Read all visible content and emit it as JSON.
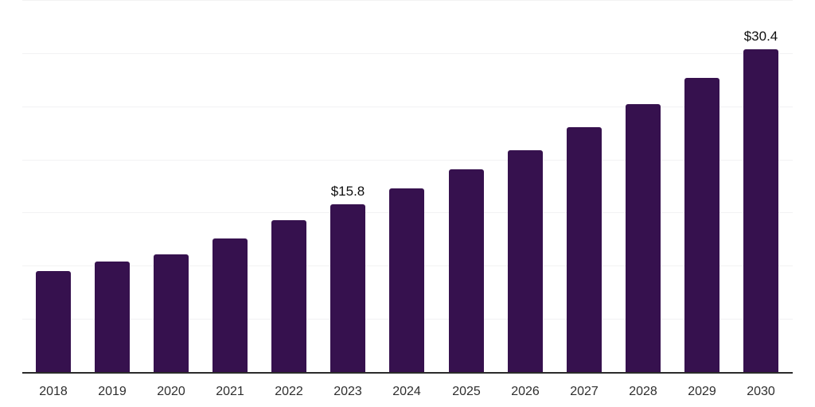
{
  "chart_data": {
    "type": "bar",
    "title": "",
    "xlabel": "",
    "ylabel": "",
    "categories": [
      "2018",
      "2019",
      "2020",
      "2021",
      "2022",
      "2023",
      "2024",
      "2025",
      "2026",
      "2027",
      "2028",
      "2029",
      "2030"
    ],
    "values": [
      9.5,
      10.4,
      11.1,
      12.6,
      14.3,
      15.8,
      17.3,
      19.1,
      20.9,
      23.0,
      25.2,
      27.7,
      30.4
    ],
    "data_labels": [
      {
        "index": 5,
        "text": "$15.8"
      },
      {
        "index": 12,
        "text": "$30.4"
      }
    ],
    "ylim": [
      0,
      35
    ],
    "grid_step": 5,
    "grid": "horizontal",
    "y_tick_labels_visible": false,
    "legend": "none",
    "colors": {
      "bar": "#36114E",
      "axis_line": "#2B2B2B",
      "gridline": "#F2F2F3",
      "x_tick_label": "#2E2E2E",
      "data_label": "#0F0F0F",
      "background": "#FFFFFF"
    }
  }
}
